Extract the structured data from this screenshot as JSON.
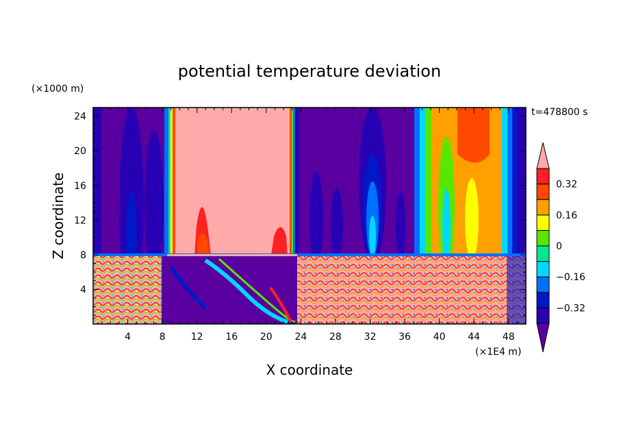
{
  "chart_data": {
    "type": "heatmap",
    "title": "potential temperature deviation",
    "xlabel": "X coordinate",
    "ylabel": "Z coordinate",
    "x_unit": "(×1E4 m)",
    "y_unit": "(×1000 m)",
    "time_label": "t=478800 s",
    "xlim": [
      0,
      50
    ],
    "ylim": [
      0,
      25
    ],
    "x_ticks": [
      4,
      8,
      12,
      16,
      20,
      24,
      28,
      32,
      36,
      40,
      44,
      48
    ],
    "y_ticks": [
      4,
      8,
      12,
      16,
      20,
      24
    ],
    "x_tick_labels": [
      "4",
      "8",
      "12",
      "16",
      "20",
      "24",
      "28",
      "32",
      "36",
      "40",
      "44",
      "48"
    ],
    "y_tick_labels": [
      "4",
      "8",
      "12",
      "16",
      "20",
      "24"
    ],
    "colorbar": {
      "levels": [
        -0.4,
        -0.32,
        -0.24,
        -0.16,
        -0.08,
        0,
        0.08,
        0.16,
        0.24,
        0.32,
        0.4
      ],
      "labeled_levels": [
        -0.32,
        -0.16,
        0,
        0.16,
        0.32
      ],
      "labels": [
        "−0.32",
        "−0.16",
        "0",
        "0.16",
        "0.32"
      ],
      "colors": [
        "#5a00a0",
        "#2800b4",
        "#0018c8",
        "#0070ff",
        "#00d8ff",
        "#00e890",
        "#58e800",
        "#ffff00",
        "#ffa000",
        "#ff4800",
        "#ff2020",
        "#ffaaaa"
      ],
      "extend": "both"
    },
    "field_regions": [
      {
        "x": [
          0,
          50
        ],
        "z": [
          8,
          25
        ],
        "value": -0.45
      },
      {
        "x": [
          9.8,
          23.2
        ],
        "z": [
          8,
          25
        ],
        "value": 0.45
      },
      {
        "x": [
          38,
          49
        ],
        "z": [
          8,
          25
        ],
        "value": 0.1
      },
      {
        "x": [
          0,
          50
        ],
        "z": [
          0,
          8
        ],
        "value": "mixed turbulent"
      }
    ]
  }
}
